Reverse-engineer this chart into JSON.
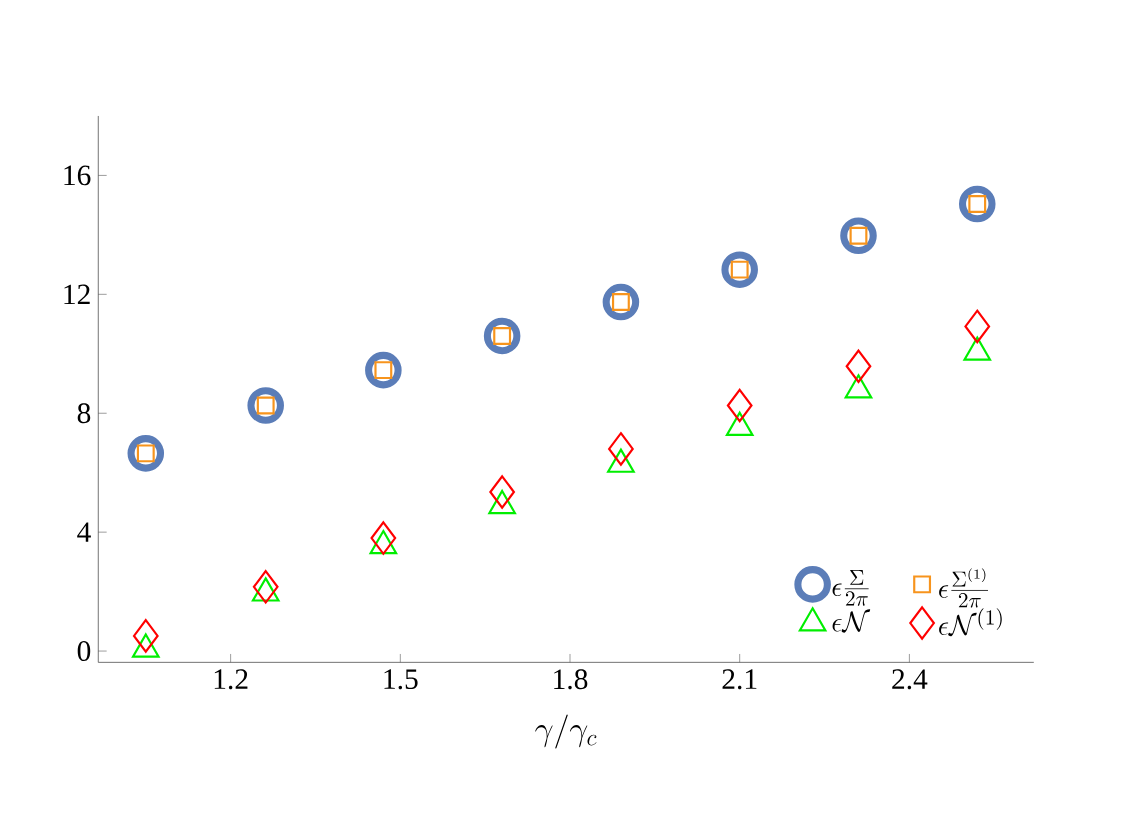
{
  "chart_data": {
    "type": "scatter",
    "xlabel": "\\gamma/\\gamma_c",
    "xlim": [
      0.966,
      2.62
    ],
    "ylim": [
      -0.38,
      18
    ],
    "xticks": [
      1.2,
      1.5,
      1.8,
      2.1,
      2.4
    ],
    "yticks": [
      0,
      4,
      8,
      12,
      16
    ],
    "grid": false,
    "legend": "bottom right",
    "x": [
      1.05,
      1.262,
      1.47,
      1.68,
      1.89,
      2.1,
      2.31,
      2.52
    ],
    "series": [
      {
        "name": "\\epsilon\\frac{\\Sigma}{2\\pi}",
        "color": "#5b7db8",
        "marker": "circle",
        "values": [
          6.65,
          8.26,
          9.45,
          10.6,
          11.74,
          12.83,
          13.97,
          15.04
        ]
      },
      {
        "name": "\\epsilon\\frac{\\Sigma^{(1)}}{2\\pi}",
        "color": "#f7941d",
        "marker": "square",
        "values": [
          6.65,
          8.26,
          9.45,
          10.6,
          11.74,
          12.83,
          13.97,
          15.04
        ]
      },
      {
        "name": "\\epsilon\\mathcal{N}",
        "color": "#00ee00",
        "marker": "triangle",
        "values": [
          0.06,
          1.95,
          3.54,
          4.89,
          6.28,
          7.52,
          8.78,
          10.05
        ]
      },
      {
        "name": "\\epsilon\\mathcal{N}^{(1)}",
        "color": "#ff0000",
        "marker": "diamond",
        "values": [
          0.51,
          2.16,
          3.8,
          5.35,
          6.8,
          8.26,
          9.58,
          10.92
        ]
      }
    ]
  }
}
